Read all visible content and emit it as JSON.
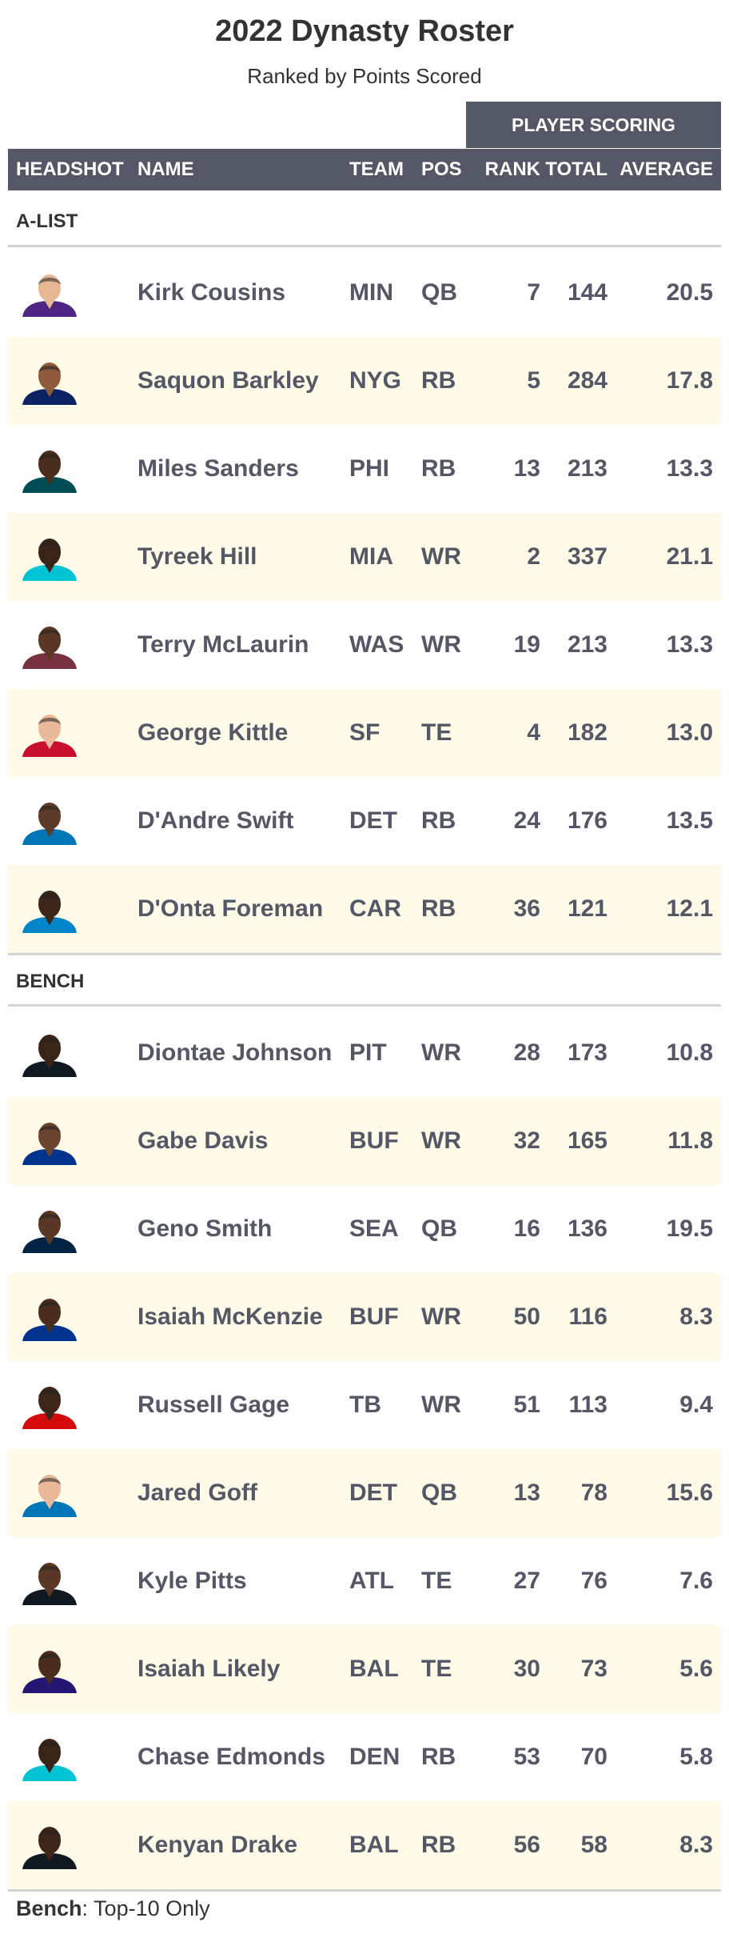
{
  "title": "2022 Dynasty Roster",
  "subtitle": "Ranked by Points Scored",
  "spanner": "PLAYER SCORING",
  "columns": {
    "headshot": "HEADSHOT",
    "name": "NAME",
    "team": "TEAM",
    "pos": "POS",
    "rank": "RANK",
    "total": "TOTAL",
    "average": "AVERAGE"
  },
  "groups": [
    {
      "label": "A-LIST",
      "rows": [
        {
          "name": "Kirk Cousins",
          "team": "MIN",
          "pos": "QB",
          "rank": "7",
          "total": "144",
          "average": "20.5",
          "jersey": "#4f2683",
          "skin": "#e7b794"
        },
        {
          "name": "Saquon Barkley",
          "team": "NYG",
          "pos": "RB",
          "rank": "5",
          "total": "284",
          "average": "17.8",
          "jersey": "#0b2265",
          "skin": "#8d5a3c"
        },
        {
          "name": "Miles Sanders",
          "team": "PHI",
          "pos": "RB",
          "rank": "13",
          "total": "213",
          "average": "13.3",
          "jersey": "#004c54",
          "skin": "#4a2d1e"
        },
        {
          "name": "Tyreek Hill",
          "team": "MIA",
          "pos": "WR",
          "rank": "2",
          "total": "337",
          "average": "21.1",
          "jersey": "#00c3d4",
          "skin": "#3a2418"
        },
        {
          "name": "Terry McLaurin",
          "team": "WAS",
          "pos": "WR",
          "rank": "19",
          "total": "213",
          "average": "13.3",
          "jersey": "#773141",
          "skin": "#5a3725"
        },
        {
          "name": "George Kittle",
          "team": "SF",
          "pos": "TE",
          "rank": "4",
          "total": "182",
          "average": "13.0",
          "jersey": "#c8102e",
          "skin": "#e9b99a"
        },
        {
          "name": "D'Andre Swift",
          "team": "DET",
          "pos": "RB",
          "rank": "24",
          "total": "176",
          "average": "13.5",
          "jersey": "#0076b6",
          "skin": "#5b3a28"
        },
        {
          "name": "D'Onta Foreman",
          "team": "CAR",
          "pos": "RB",
          "rank": "36",
          "total": "121",
          "average": "12.1",
          "jersey": "#0085ca",
          "skin": "#3d2619"
        }
      ]
    },
    {
      "label": "BENCH",
      "rows": [
        {
          "name": "Diontae Johnson",
          "team": "PIT",
          "pos": "WR",
          "rank": "28",
          "total": "173",
          "average": "10.8",
          "jersey": "#101820",
          "skin": "#3a2418"
        },
        {
          "name": "Gabe Davis",
          "team": "BUF",
          "pos": "WR",
          "rank": "32",
          "total": "165",
          "average": "11.8",
          "jersey": "#00338d",
          "skin": "#6b4430"
        },
        {
          "name": "Geno Smith",
          "team": "SEA",
          "pos": "QB",
          "rank": "16",
          "total": "136",
          "average": "19.5",
          "jersey": "#002244",
          "skin": "#5a3725"
        },
        {
          "name": "Isaiah McKenzie",
          "team": "BUF",
          "pos": "WR",
          "rank": "50",
          "total": "116",
          "average": "8.3",
          "jersey": "#00338d",
          "skin": "#4a2d1e"
        },
        {
          "name": "Russell Gage",
          "team": "TB",
          "pos": "WR",
          "rank": "51",
          "total": "113",
          "average": "9.4",
          "jersey": "#d50a0a",
          "skin": "#3d2619"
        },
        {
          "name": "Jared Goff",
          "team": "DET",
          "pos": "QB",
          "rank": "13",
          "total": "78",
          "average": "15.6",
          "jersey": "#0076b6",
          "skin": "#e9b99a"
        },
        {
          "name": "Kyle Pitts",
          "team": "ATL",
          "pos": "TE",
          "rank": "27",
          "total": "76",
          "average": "7.6",
          "jersey": "#101820",
          "skin": "#5a3725"
        },
        {
          "name": "Isaiah Likely",
          "team": "BAL",
          "pos": "TE",
          "rank": "30",
          "total": "73",
          "average": "5.6",
          "jersey": "#241773",
          "skin": "#4a2d1e"
        },
        {
          "name": "Chase Edmonds",
          "team": "DEN",
          "pos": "RB",
          "rank": "53",
          "total": "70",
          "average": "5.8",
          "jersey": "#00c3d4",
          "skin": "#3a2418"
        },
        {
          "name": "Kenyan Drake",
          "team": "BAL",
          "pos": "RB",
          "rank": "56",
          "total": "58",
          "average": "8.3",
          "jersey": "#101820",
          "skin": "#3d2619"
        }
      ]
    }
  ],
  "footnote": {
    "bold": "Bench",
    "text": ": Top-10 Only"
  }
}
